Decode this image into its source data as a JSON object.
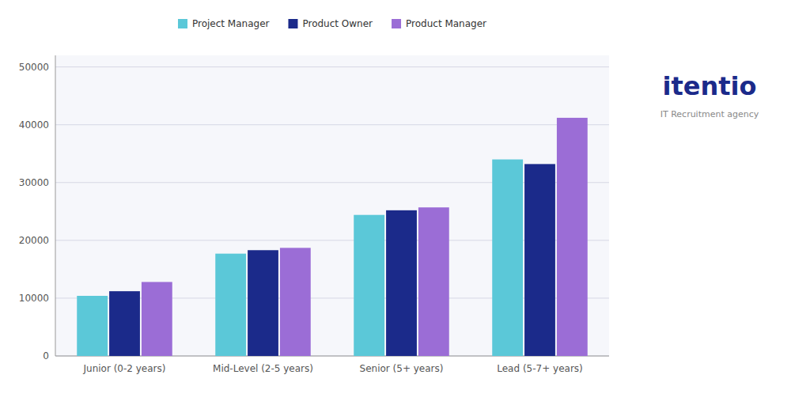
{
  "chart_data": {
    "type": "bar",
    "title": "itentio",
    "subtitle": "IT Recruitment agency",
    "categories": [
      "Junior (0-2 years)",
      "Mid-Level (2-5 years)",
      "Senior (5+ years)",
      "Lead (5-7+ years)"
    ],
    "series": [
      {
        "name": "Project Manager",
        "color": "#5BC8D8",
        "values": [
          10400,
          17700,
          24400,
          34000
        ]
      },
      {
        "name": "Product Owner",
        "color": "#1B2A8A",
        "values": [
          11200,
          18300,
          25200,
          33200
        ]
      },
      {
        "name": "Product Manager",
        "color": "#9B6DD6",
        "values": [
          12800,
          18700,
          25700,
          41200
        ]
      }
    ],
    "ylim": [
      0,
      52000
    ],
    "yticks": [
      0,
      10000,
      20000,
      30000,
      40000,
      50000
    ],
    "grid": true,
    "legend": "top"
  }
}
